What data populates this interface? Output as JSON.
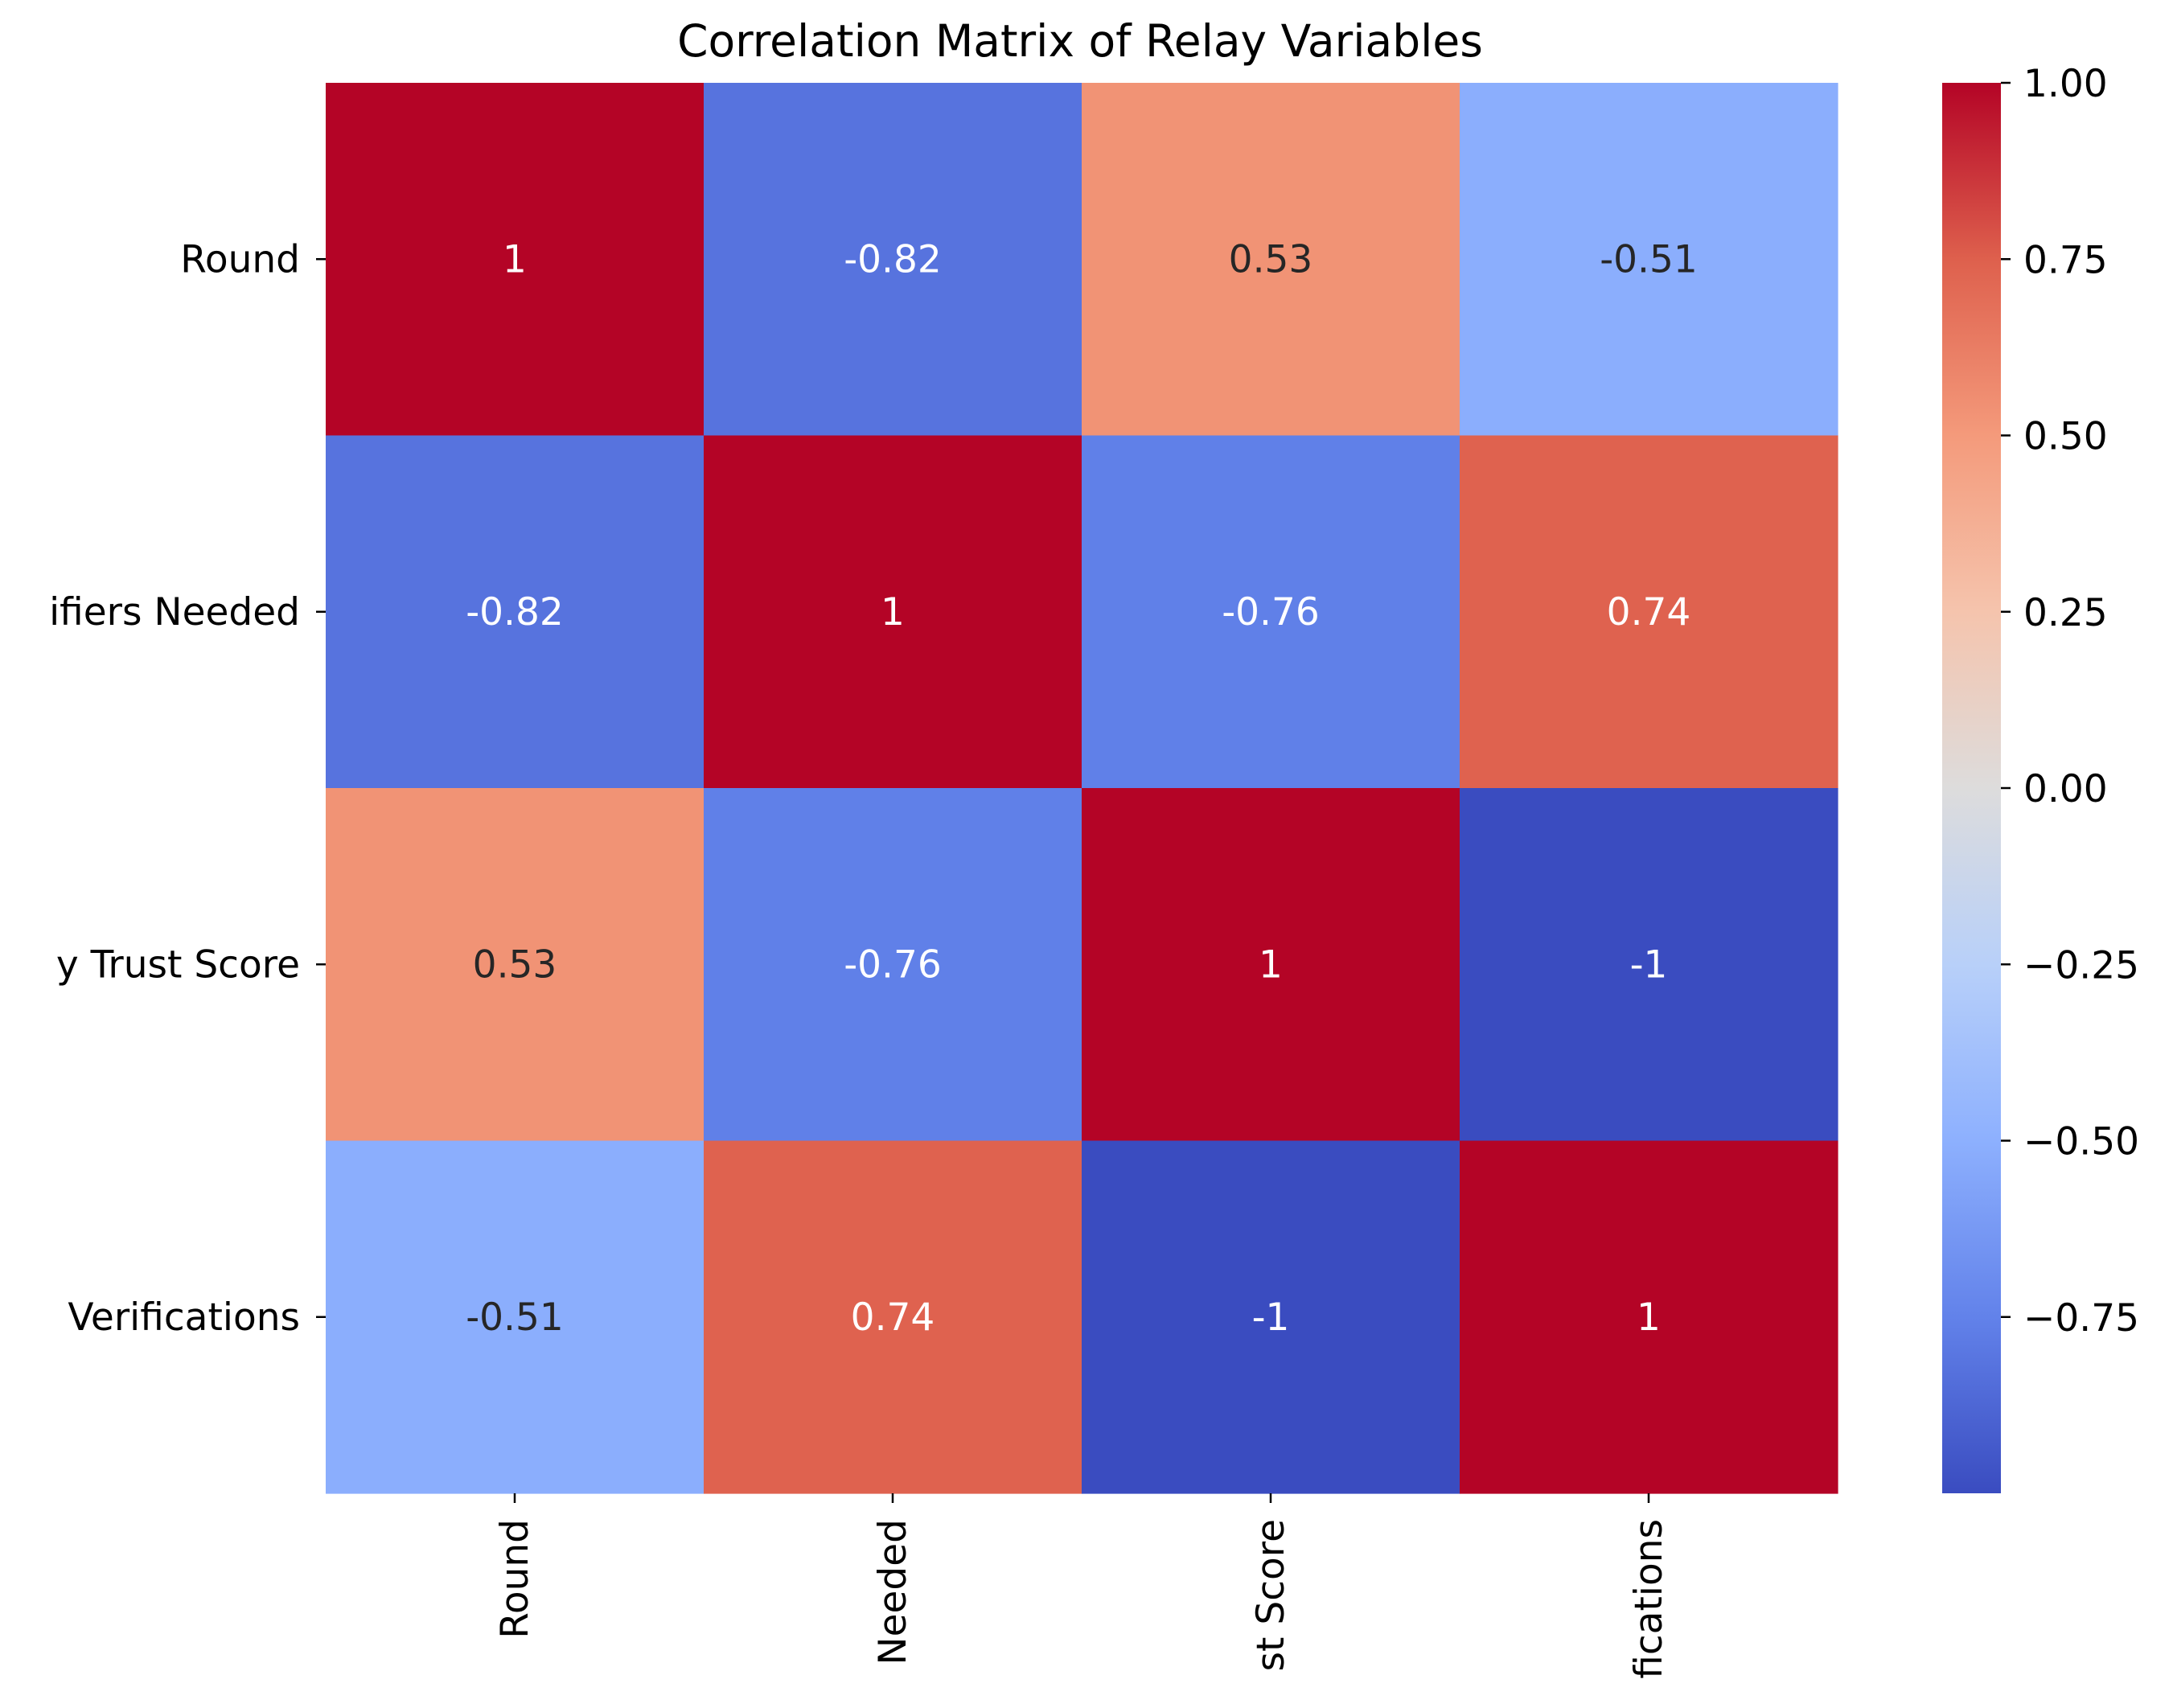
{
  "chart_data": {
    "type": "heatmap",
    "title": "Correlation Matrix of Relay Variables",
    "row_labels": [
      "Round",
      "ifiers Needed",
      "y Trust Score",
      "Verifications"
    ],
    "col_labels": [
      "Round",
      "Needed",
      "st Score",
      "fications"
    ],
    "values": [
      [
        1.0,
        -0.82,
        0.53,
        -0.51
      ],
      [
        -0.82,
        1.0,
        -0.76,
        0.74
      ],
      [
        0.53,
        -0.76,
        1.0,
        -1.0
      ],
      [
        -0.51,
        0.74,
        -1.0,
        1.0
      ]
    ],
    "cell_annotations": [
      [
        "1",
        "-0.82",
        "0.53",
        "-0.51"
      ],
      [
        "-0.82",
        "1",
        "-0.76",
        "0.74"
      ],
      [
        "0.53",
        "-0.76",
        "1",
        "-1"
      ],
      [
        "-0.51",
        "0.74",
        "-1",
        "1"
      ]
    ],
    "colormap": "coolwarm",
    "vmin": -1.0,
    "vmax": 1.0,
    "colorbar_ticks": [
      1.0,
      0.75,
      0.5,
      0.25,
      0.0,
      -0.25,
      -0.5,
      -0.75
    ],
    "colorbar_tick_labels": [
      "1.00",
      "0.75",
      "0.50",
      "0.25",
      "0.00",
      "−0.25",
      "−0.50",
      "−0.75"
    ],
    "colorbar_position": "right"
  }
}
